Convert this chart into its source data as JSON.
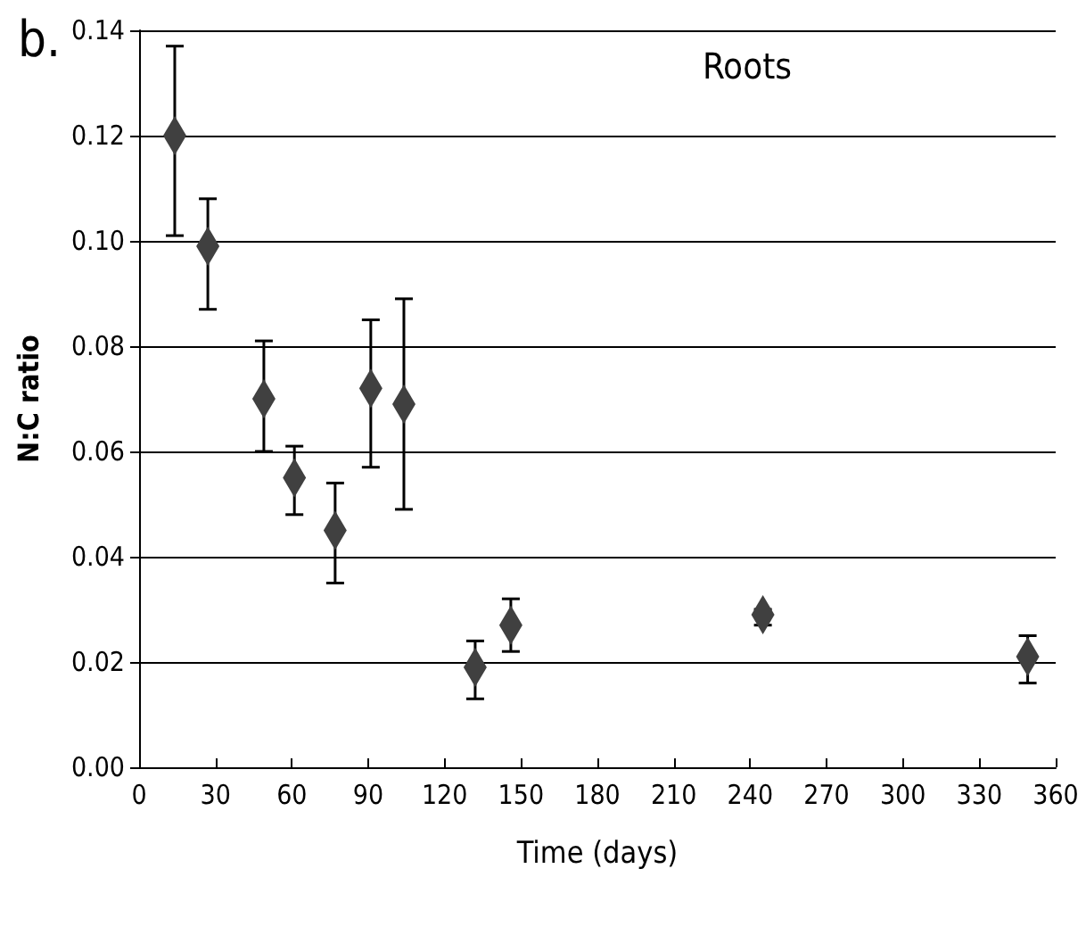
{
  "chart_data": {
    "type": "scatter",
    "title": "Roots",
    "annotations": [
      "b."
    ],
    "xlabel": "Time (days)",
    "ylabel": "N:C ratio",
    "x": [
      14,
      27,
      49,
      61,
      77,
      91,
      104,
      132,
      146,
      245,
      349
    ],
    "series": [
      {
        "color": "#404040",
        "values": [
          0.12,
          0.099,
          0.07,
          0.055,
          0.045,
          0.072,
          0.069,
          0.019,
          0.027,
          0.029,
          0.021
        ],
        "errors": [
          [
            0.101,
            0.137
          ],
          [
            0.087,
            0.108
          ],
          [
            0.06,
            0.081
          ],
          [
            0.048,
            0.061
          ],
          [
            0.035,
            0.054
          ],
          [
            0.057,
            0.085
          ],
          [
            0.049,
            0.089
          ],
          [
            0.013,
            0.024
          ],
          [
            0.022,
            0.032
          ],
          [
            0.027,
            0.03
          ],
          [
            0.016,
            0.025
          ]
        ]
      }
    ],
    "xlim": [
      0,
      360
    ],
    "xticks": [
      0,
      30,
      60,
      90,
      120,
      150,
      180,
      210,
      240,
      270,
      300,
      330,
      360
    ],
    "ylim": [
      0,
      0.14
    ],
    "yticks": [
      {
        "value": 0,
        "label": "0.00"
      },
      {
        "value": 0.02,
        "label": "0.02"
      },
      {
        "value": 0.04,
        "label": "0.04"
      },
      {
        "value": 0.06,
        "label": "0.06"
      },
      {
        "value": 0.08,
        "label": "0.08"
      },
      {
        "value": 0.1,
        "label": "0.10"
      },
      {
        "value": 0.12,
        "label": "0.12"
      },
      {
        "value": 0.14,
        "label": "0.14"
      }
    ],
    "grid": "y",
    "marker": "diamond"
  }
}
